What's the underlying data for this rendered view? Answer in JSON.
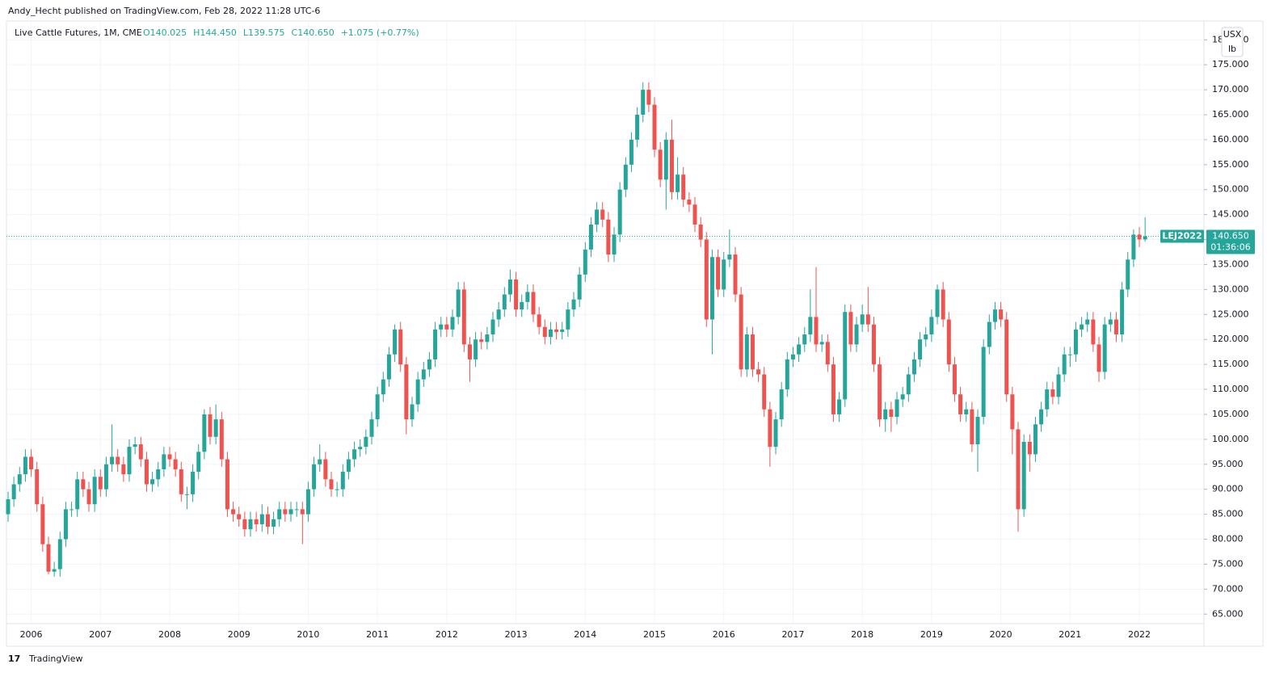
{
  "header": {
    "publisher": "Andy_Hecht published on TradingView.com, Feb 28, 2022 11:28 UTC-6",
    "brand": "TradingView"
  },
  "chart_data": {
    "type": "candlestick",
    "title": "Live Cattle Futures, 1M, CME",
    "ohlc_labels": [
      "O140.025",
      "H144.450",
      "L139.575",
      "C140.650",
      "+1.075 (+0.77%)"
    ],
    "units": [
      "USX",
      "lb"
    ],
    "last_price": {
      "symbol": "LEJ2022",
      "price": "140.650",
      "countdown": "01:36:06"
    },
    "up_color": "#26a69a",
    "down_color": "#ef5350",
    "grid": true,
    "ylim": [
      63.1,
      183.6
    ],
    "yticks": [
      {
        "value": 65,
        "label": "65.000"
      },
      {
        "value": 70,
        "label": "70.000"
      },
      {
        "value": 75,
        "label": "75.000"
      },
      {
        "value": 80,
        "label": "80.000"
      },
      {
        "value": 85,
        "label": "85.000"
      },
      {
        "value": 90,
        "label": "90.000"
      },
      {
        "value": 95,
        "label": "95.000"
      },
      {
        "value": 100,
        "label": "100.000"
      },
      {
        "value": 105,
        "label": "105.000"
      },
      {
        "value": 110,
        "label": "110.000"
      },
      {
        "value": 115,
        "label": "115.000"
      },
      {
        "value": 120,
        "label": "120.000"
      },
      {
        "value": 125,
        "label": "125.000"
      },
      {
        "value": 130,
        "label": "130.000"
      },
      {
        "value": 135,
        "label": "135.000"
      },
      {
        "value": 140,
        "label": "140.000"
      },
      {
        "value": 145,
        "label": "145.000"
      },
      {
        "value": 150,
        "label": "150.000"
      },
      {
        "value": 155,
        "label": "155.000"
      },
      {
        "value": 160,
        "label": "160.000"
      },
      {
        "value": 165,
        "label": "165.000"
      },
      {
        "value": 170,
        "label": "170.000"
      },
      {
        "value": 175,
        "label": "175.000"
      },
      {
        "value": 180,
        "label": "180.000"
      }
    ],
    "categories": [
      null,
      null,
      null,
      null,
      "2006",
      null,
      null,
      null,
      null,
      null,
      null,
      null,
      null,
      null,
      null,
      null,
      "2007",
      null,
      null,
      null,
      null,
      null,
      null,
      null,
      null,
      null,
      null,
      null,
      "2008",
      null,
      null,
      null,
      null,
      null,
      null,
      null,
      null,
      null,
      null,
      null,
      "2009",
      null,
      null,
      null,
      null,
      null,
      null,
      null,
      null,
      null,
      null,
      null,
      "2010",
      null,
      null,
      null,
      null,
      null,
      null,
      null,
      null,
      null,
      null,
      null,
      "2011",
      null,
      null,
      null,
      null,
      null,
      null,
      null,
      null,
      null,
      null,
      null,
      "2012",
      null,
      null,
      null,
      null,
      null,
      null,
      null,
      null,
      null,
      null,
      null,
      "2013",
      null,
      null,
      null,
      null,
      null,
      null,
      null,
      null,
      null,
      null,
      null,
      "2014",
      null,
      null,
      null,
      null,
      null,
      null,
      null,
      null,
      null,
      null,
      null,
      "2015",
      null,
      null,
      null,
      null,
      null,
      null,
      null,
      null,
      null,
      null,
      null,
      "2016",
      null,
      null,
      null,
      null,
      null,
      null,
      null,
      null,
      null,
      null,
      null,
      "2017",
      null,
      null,
      null,
      null,
      null,
      null,
      null,
      null,
      null,
      null,
      null,
      "2018",
      null,
      null,
      null,
      null,
      null,
      null,
      null,
      null,
      null,
      null,
      null,
      "2019",
      null,
      null,
      null,
      null,
      null,
      null,
      null,
      null,
      null,
      null,
      null,
      "2020",
      null,
      null,
      null,
      null,
      null,
      null,
      null,
      null,
      null,
      null,
      null,
      "2021",
      null,
      null,
      null,
      null,
      null,
      null,
      null,
      null,
      null,
      null,
      null,
      "2022",
      null
    ],
    "candles": [
      [
        85,
        89.5,
        83.5,
        88
      ],
      [
        88,
        92.5,
        86.5,
        91
      ],
      [
        91,
        94.5,
        89.5,
        93
      ],
      [
        93,
        98,
        91.5,
        96.5
      ],
      [
        96.5,
        98,
        92.5,
        94
      ],
      [
        94,
        95.5,
        85.5,
        87
      ],
      [
        87,
        88.5,
        77.5,
        79
      ],
      [
        79,
        80.5,
        73,
        73.5
      ],
      [
        73.5,
        75.5,
        72.5,
        74
      ],
      [
        74,
        81.5,
        72.5,
        80
      ],
      [
        80,
        87.5,
        78.5,
        86
      ],
      [
        86,
        87.5,
        84.5,
        86
      ],
      [
        86,
        93.5,
        84.5,
        92
      ],
      [
        92,
        93.5,
        88.5,
        90
      ],
      [
        90,
        91.5,
        85.5,
        87
      ],
      [
        87,
        94,
        85.5,
        92.5
      ],
      [
        92.5,
        94,
        88.5,
        90
      ],
      [
        90,
        96.5,
        88.5,
        95
      ],
      [
        95,
        103,
        93.5,
        96.5
      ],
      [
        96.5,
        98,
        93.5,
        95
      ],
      [
        95,
        96.5,
        91.5,
        93
      ],
      [
        93,
        100,
        91.5,
        98.5
      ],
      [
        98.5,
        100.5,
        97,
        99
      ],
      [
        99,
        100.5,
        94.5,
        96
      ],
      [
        96,
        97.5,
        89.5,
        91
      ],
      [
        91,
        93.5,
        89.5,
        92
      ],
      [
        92,
        95.5,
        90.5,
        94
      ],
      [
        94,
        98.5,
        92.5,
        97
      ],
      [
        97,
        98.5,
        94.5,
        96
      ],
      [
        96,
        97.5,
        92.5,
        94
      ],
      [
        94,
        95.5,
        87.5,
        89
      ],
      [
        89,
        90.5,
        86,
        89
      ],
      [
        89,
        95,
        87.5,
        93.5
      ],
      [
        93.5,
        99,
        92,
        97.5
      ],
      [
        97.5,
        106,
        96,
        105
      ],
      [
        105,
        106.5,
        99,
        100.5
      ],
      [
        100.5,
        107,
        99,
        104
      ],
      [
        104,
        105.5,
        94.5,
        96
      ],
      [
        96,
        97.5,
        84.5,
        86
      ],
      [
        86,
        87.5,
        83.5,
        85
      ],
      [
        85,
        86.5,
        82.5,
        84
      ],
      [
        84,
        85.5,
        80.5,
        82
      ],
      [
        82,
        85.5,
        80.5,
        84
      ],
      [
        84,
        85.5,
        81.5,
        83
      ],
      [
        83,
        87,
        81.5,
        85
      ],
      [
        85,
        86.5,
        81,
        82.5
      ],
      [
        82.5,
        85.5,
        81,
        84
      ],
      [
        84,
        87.5,
        82.5,
        86
      ],
      [
        86,
        87.5,
        83.5,
        85
      ],
      [
        85,
        87.5,
        83.5,
        86
      ],
      [
        86,
        87.5,
        84.5,
        86
      ],
      [
        86,
        87.5,
        79,
        85
      ],
      [
        85,
        91.5,
        83.5,
        90
      ],
      [
        90,
        96.5,
        88.5,
        95
      ],
      [
        95,
        99,
        93.5,
        96
      ],
      [
        96,
        97.5,
        90.5,
        92
      ],
      [
        92,
        93.5,
        88.5,
        90
      ],
      [
        90,
        91.5,
        88.5,
        90
      ],
      [
        90,
        95,
        88.5,
        93.5
      ],
      [
        93.5,
        97.5,
        92,
        96
      ],
      [
        96,
        99.5,
        94.5,
        98
      ],
      [
        98,
        100,
        96.5,
        98.5
      ],
      [
        98.5,
        102,
        97,
        100.5
      ],
      [
        100.5,
        105.5,
        99,
        104
      ],
      [
        104,
        110.5,
        102.5,
        109
      ],
      [
        109,
        113.5,
        107.5,
        112
      ],
      [
        112,
        118.5,
        110.5,
        117
      ],
      [
        117,
        123,
        115.5,
        122
      ],
      [
        122,
        123.5,
        113.5,
        115
      ],
      [
        115,
        116.5,
        101,
        104
      ],
      [
        104,
        108.5,
        102.5,
        107
      ],
      [
        107,
        113.5,
        105.5,
        112
      ],
      [
        112,
        115.5,
        110.5,
        114
      ],
      [
        114,
        117.5,
        112.5,
        116
      ],
      [
        116,
        123.5,
        114.5,
        122
      ],
      [
        122,
        124.5,
        120.5,
        123
      ],
      [
        123,
        124.5,
        120.5,
        122
      ],
      [
        122,
        126,
        120.5,
        124.5
      ],
      [
        124.5,
        131.5,
        123,
        130
      ],
      [
        130,
        131.5,
        117.5,
        119
      ],
      [
        119,
        120.5,
        111.5,
        116
      ],
      [
        116,
        121.5,
        114.5,
        120
      ],
      [
        120,
        121.5,
        118,
        119.5
      ],
      [
        119.5,
        122.5,
        118,
        121
      ],
      [
        121,
        125.5,
        119.5,
        124
      ],
      [
        124,
        127.5,
        122.5,
        126
      ],
      [
        126,
        130.5,
        124.5,
        129
      ],
      [
        129,
        134,
        127.5,
        132
      ],
      [
        132,
        133.5,
        124.5,
        126
      ],
      [
        126,
        129,
        124.5,
        127.5
      ],
      [
        127.5,
        131,
        126,
        129.5
      ],
      [
        129.5,
        131,
        123.5,
        125
      ],
      [
        125,
        126.5,
        121,
        122.5
      ],
      [
        122.5,
        124,
        119,
        120.5
      ],
      [
        120.5,
        123.5,
        119,
        122
      ],
      [
        122,
        123.5,
        120,
        121.5
      ],
      [
        121.5,
        123.5,
        120,
        122
      ],
      [
        122,
        127.5,
        120.5,
        126
      ],
      [
        126,
        129.5,
        124.5,
        128
      ],
      [
        128,
        134.5,
        126.5,
        133
      ],
      [
        133,
        139.5,
        131.5,
        138
      ],
      [
        138,
        144.5,
        136.5,
        143
      ],
      [
        143,
        147.5,
        141.5,
        146
      ],
      [
        146,
        147.5,
        142.5,
        144
      ],
      [
        144,
        145.5,
        135.5,
        137
      ],
      [
        137,
        142.5,
        135.5,
        141
      ],
      [
        141,
        151.5,
        139.5,
        150
      ],
      [
        150,
        156.5,
        148.5,
        155
      ],
      [
        155,
        161.5,
        153.5,
        160
      ],
      [
        160,
        166.5,
        158.5,
        165
      ],
      [
        165,
        171.5,
        163.5,
        170
      ],
      [
        170,
        171.5,
        165.5,
        167
      ],
      [
        167,
        168.5,
        156.5,
        158
      ],
      [
        158,
        159.5,
        150.5,
        152
      ],
      [
        152,
        161.5,
        146,
        160
      ],
      [
        160,
        164,
        148,
        149.5
      ],
      [
        149.5,
        156.5,
        148,
        153
      ],
      [
        153,
        154.5,
        146.5,
        148
      ],
      [
        148,
        149.5,
        145.5,
        147
      ],
      [
        147,
        148.5,
        141.5,
        143
      ],
      [
        143,
        144.5,
        138.5,
        140
      ],
      [
        140,
        141.5,
        122.5,
        124
      ],
      [
        124,
        138,
        117,
        136.5
      ],
      [
        136.5,
        138,
        128.5,
        130
      ],
      [
        130,
        137.5,
        128.5,
        136
      ],
      [
        136,
        142,
        134.5,
        137
      ],
      [
        137,
        138.5,
        127.5,
        129
      ],
      [
        129,
        130.5,
        112.5,
        114
      ],
      [
        114,
        122.5,
        112.5,
        121
      ],
      [
        121,
        122.5,
        112.5,
        114
      ],
      [
        114,
        115.5,
        111.5,
        113
      ],
      [
        113,
        114.5,
        104.5,
        106
      ],
      [
        106,
        107.5,
        94.5,
        98.5
      ],
      [
        98.5,
        105.5,
        97,
        104
      ],
      [
        104,
        111.5,
        102.5,
        110
      ],
      [
        110,
        117.5,
        108.5,
        116
      ],
      [
        116,
        118.5,
        114.5,
        117
      ],
      [
        117,
        120.5,
        115.5,
        119
      ],
      [
        119,
        122.5,
        117.5,
        121
      ],
      [
        121,
        130,
        119.5,
        124.5
      ],
      [
        124.5,
        134.5,
        117.5,
        119
      ],
      [
        119,
        121,
        117.5,
        119.5
      ],
      [
        119.5,
        121,
        113.5,
        115
      ],
      [
        115,
        116.5,
        103.5,
        105
      ],
      [
        105,
        109.5,
        103.5,
        108
      ],
      [
        108,
        127,
        106.5,
        125.5
      ],
      [
        125.5,
        127,
        117.5,
        119
      ],
      [
        119,
        124.5,
        117.5,
        123
      ],
      [
        123,
        127,
        121.5,
        125
      ],
      [
        125,
        130.5,
        121.5,
        123
      ],
      [
        123,
        124.5,
        113.5,
        115
      ],
      [
        115,
        116.5,
        102.5,
        104
      ],
      [
        104,
        107.5,
        101.5,
        106
      ],
      [
        106,
        107.5,
        101.5,
        104.5
      ],
      [
        104.5,
        109.5,
        103,
        108
      ],
      [
        108,
        110.5,
        106.5,
        109
      ],
      [
        109,
        114.5,
        107.5,
        113
      ],
      [
        113,
        117.5,
        111.5,
        116
      ],
      [
        116,
        121.5,
        114.5,
        120
      ],
      [
        120,
        122.5,
        118.5,
        121
      ],
      [
        121,
        126,
        119.5,
        124.5
      ],
      [
        124.5,
        131,
        123,
        130
      ],
      [
        130,
        131.5,
        122.5,
        124
      ],
      [
        124,
        125.5,
        113.5,
        115
      ],
      [
        115,
        116.5,
        107.5,
        109
      ],
      [
        109,
        110.5,
        103.5,
        105
      ],
      [
        105,
        107.5,
        103.5,
        106
      ],
      [
        106,
        107.5,
        97.5,
        99
      ],
      [
        99,
        106,
        93.5,
        104.5
      ],
      [
        104.5,
        120,
        103,
        118.5
      ],
      [
        118.5,
        125,
        117,
        123.5
      ],
      [
        123.5,
        127.5,
        122,
        126
      ],
      [
        126,
        127.5,
        122.5,
        124
      ],
      [
        124,
        125.5,
        107.5,
        109
      ],
      [
        109,
        110.5,
        97,
        102
      ],
      [
        102,
        103.5,
        81.5,
        86
      ],
      [
        86,
        101,
        84.5,
        99.5
      ],
      [
        99.5,
        101,
        93.5,
        97
      ],
      [
        97,
        104.5,
        95.5,
        103
      ],
      [
        103,
        107.5,
        101.5,
        106
      ],
      [
        106,
        111.5,
        104.5,
        110
      ],
      [
        110,
        111.5,
        107,
        108.5
      ],
      [
        108.5,
        114.5,
        107,
        113
      ],
      [
        113,
        118.5,
        111.5,
        117
      ],
      [
        117,
        118.5,
        114.5,
        117
      ],
      [
        117,
        123.5,
        115.5,
        122
      ],
      [
        122,
        124.5,
        120.5,
        123
      ],
      [
        123,
        125.5,
        121.5,
        124
      ],
      [
        124,
        125.5,
        117.5,
        119
      ],
      [
        119,
        120.5,
        111.5,
        113.5
      ],
      [
        113.5,
        124.5,
        112,
        123
      ],
      [
        123,
        125.5,
        121.5,
        124
      ],
      [
        124,
        125.5,
        119.5,
        121
      ],
      [
        121,
        131.5,
        119.5,
        130
      ],
      [
        130,
        137.5,
        128.5,
        136
      ],
      [
        136,
        142,
        134.5,
        141
      ],
      [
        141,
        142.5,
        138.5,
        140.025
      ],
      [
        140.025,
        144.45,
        139.575,
        140.65
      ]
    ]
  }
}
